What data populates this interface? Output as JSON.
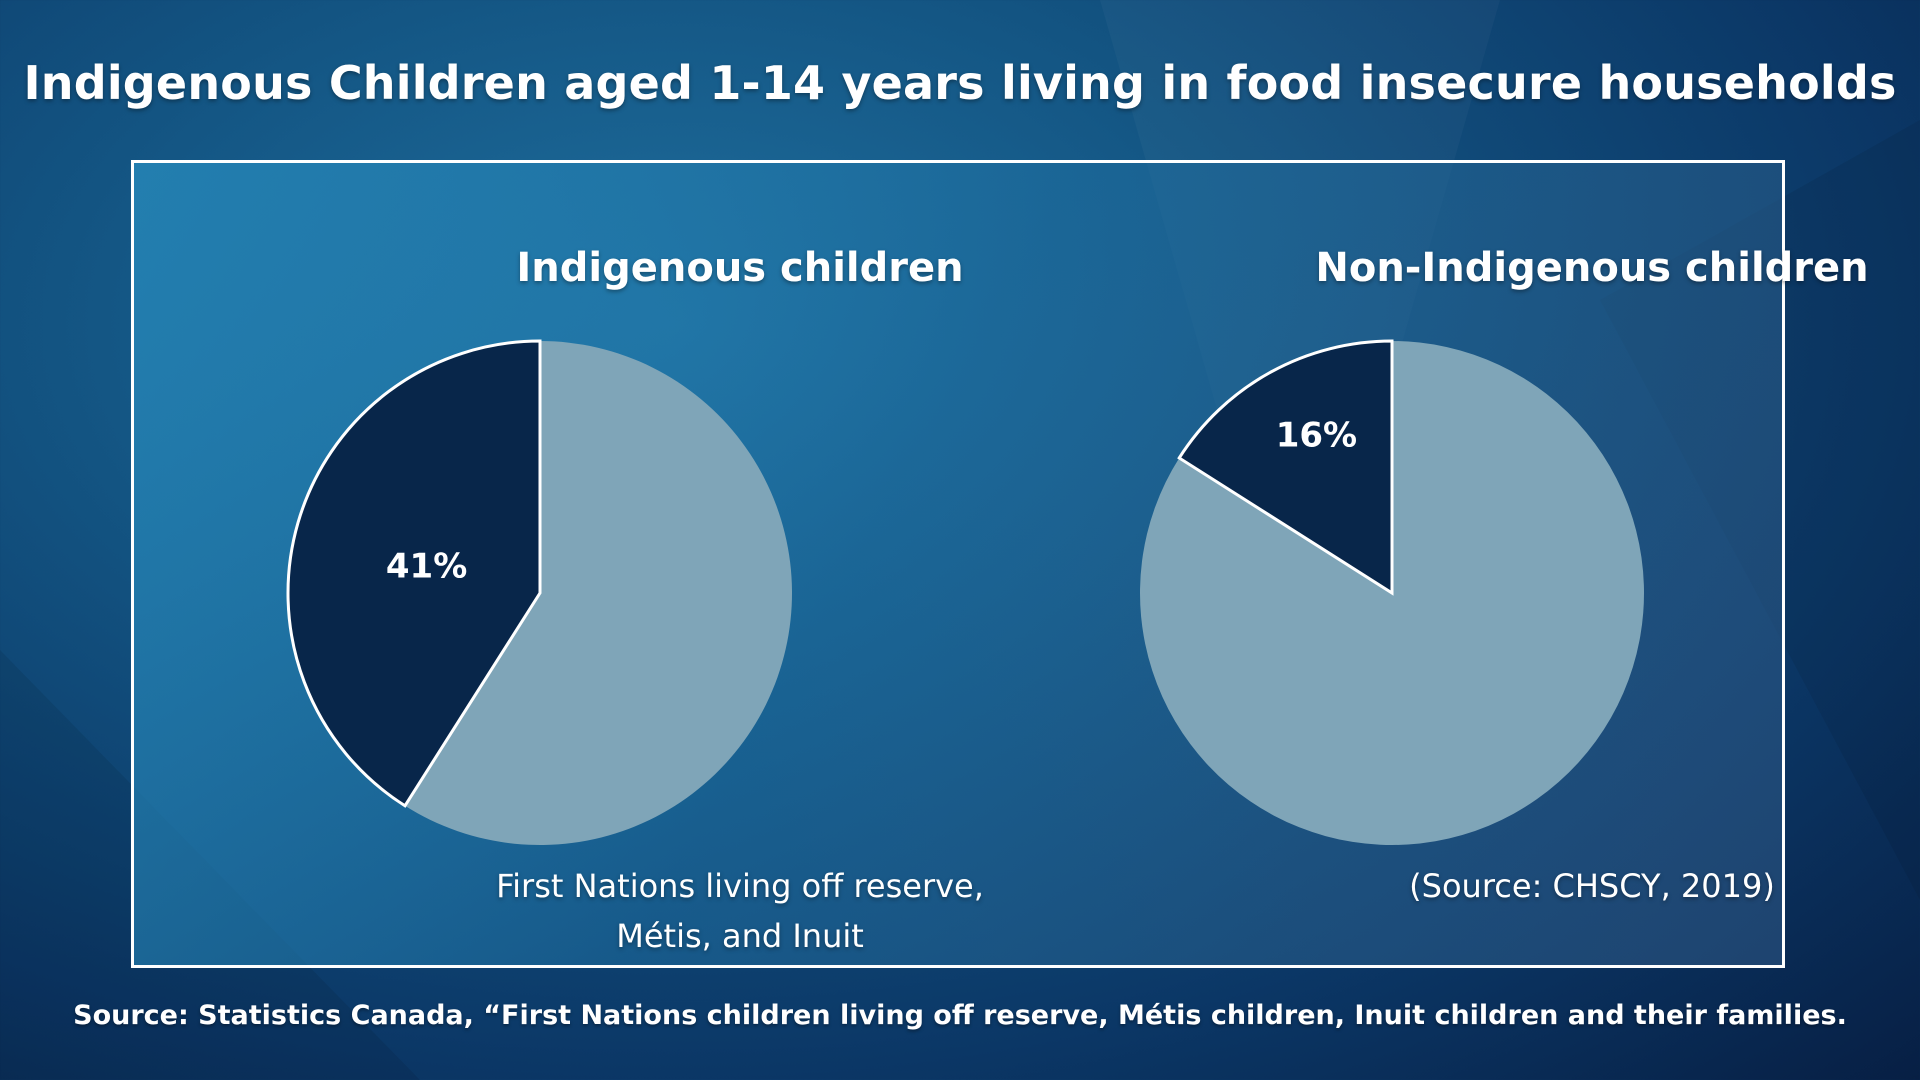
{
  "title": "Indigenous Children aged 1-14 years living in food insecure households",
  "source": "Source: Statistics Canada, “First Nations children living off reserve, Métis children, Inuit children and their families.",
  "colors": {
    "highlight": "#08264a",
    "remainder": "#7fa5b8",
    "slice_border": "#ffffff"
  },
  "chart_data": [
    {
      "type": "pie",
      "title": "Indigenous children",
      "caption_line1": "First Nations living off reserve,",
      "caption_line2": "Métis, and Inuit",
      "slices": [
        {
          "value": 41,
          "label": "41%"
        },
        {
          "value": 59,
          "label": ""
        }
      ]
    },
    {
      "type": "pie",
      "title": "Non-Indigenous children",
      "caption_line1": "(Source: CHSCY, 2019)",
      "caption_line2": "",
      "slices": [
        {
          "value": 16,
          "label": "16%"
        },
        {
          "value": 84,
          "label": ""
        }
      ]
    }
  ]
}
